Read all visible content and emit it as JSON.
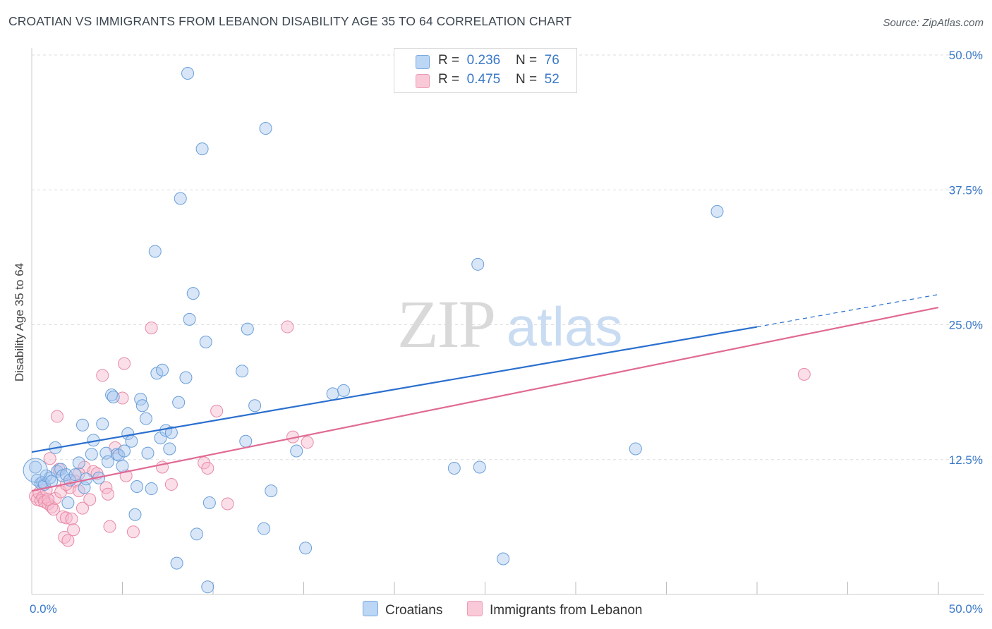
{
  "title": "CROATIAN VS IMMIGRANTS FROM LEBANON DISABILITY AGE 35 TO 64 CORRELATION CHART",
  "source": "Source: ZipAtlas.com",
  "watermark": {
    "zip": "ZIP",
    "atlas": "atlas"
  },
  "legend_top": {
    "rows": [
      {
        "r_label": "R =",
        "r_value": "0.236",
        "n_label": "N =",
        "n_value": "76"
      },
      {
        "r_label": "R =",
        "r_value": "0.475",
        "n_label": "N =",
        "n_value": "52"
      }
    ]
  },
  "colors": {
    "croatians_fill": "#a8c8f0",
    "croatians_stroke": "#6a9fd8",
    "croatians_line": "#2a6fcf",
    "lebanon_fill": "#f7b8cb",
    "lebanon_stroke": "#e88aa6",
    "lebanon_line": "#e06a94",
    "axis_label": "#3a78c8",
    "grid": "#dddddd"
  },
  "chart_data": {
    "type": "scatter",
    "title": "CROATIAN VS IMMIGRANTS FROM LEBANON DISABILITY AGE 35 TO 64 CORRELATION CHART",
    "xlabel": "",
    "ylabel": "Disability Age 35 to 64",
    "xlim": [
      0,
      50
    ],
    "ylim": [
      0,
      50
    ],
    "x_tick_labels": [
      "0.0%",
      "50.0%"
    ],
    "y_ticks": [
      12.5,
      25.0,
      37.5,
      50.0
    ],
    "y_tick_labels": [
      "12.5%",
      "25.0%",
      "37.5%",
      "50.0%"
    ],
    "legend": {
      "placement": "bottom-center",
      "entries": [
        "Croatians",
        "Immigrants from Lebanon"
      ]
    },
    "series": [
      {
        "name": "Croatians",
        "r": 0.236,
        "n": 76,
        "trend": {
          "x0": 0,
          "y0": 13.2,
          "x1": 40,
          "y1": 24.8,
          "dash_x1": 50,
          "dash_y1": 27.8
        },
        "points": [
          [
            0.2,
            11.8
          ],
          [
            0.3,
            10.6
          ],
          [
            0.5,
            10.3
          ],
          [
            0.6,
            10.4
          ],
          [
            0.7,
            10.2
          ],
          [
            0.8,
            11.0
          ],
          [
            1.0,
            10.8
          ],
          [
            1.1,
            10.5
          ],
          [
            1.3,
            13.6
          ],
          [
            1.4,
            11.4
          ],
          [
            1.6,
            11.6
          ],
          [
            1.7,
            11.0
          ],
          [
            1.9,
            11.1
          ],
          [
            2.0,
            8.5
          ],
          [
            2.1,
            10.6
          ],
          [
            2.4,
            11.1
          ],
          [
            2.6,
            12.2
          ],
          [
            2.8,
            15.7
          ],
          [
            2.9,
            9.9
          ],
          [
            3.0,
            10.7
          ],
          [
            3.3,
            13.0
          ],
          [
            3.4,
            14.3
          ],
          [
            3.7,
            10.8
          ],
          [
            3.9,
            15.8
          ],
          [
            4.1,
            13.1
          ],
          [
            4.2,
            12.3
          ],
          [
            4.4,
            18.5
          ],
          [
            4.5,
            18.3
          ],
          [
            4.7,
            13.0
          ],
          [
            4.8,
            12.9
          ],
          [
            5.0,
            11.9
          ],
          [
            5.1,
            13.3
          ],
          [
            5.3,
            14.9
          ],
          [
            5.5,
            14.2
          ],
          [
            5.7,
            7.4
          ],
          [
            5.8,
            10.0
          ],
          [
            6.0,
            18.1
          ],
          [
            6.1,
            17.5
          ],
          [
            6.3,
            16.3
          ],
          [
            6.4,
            13.1
          ],
          [
            6.6,
            9.8
          ],
          [
            6.8,
            31.8
          ],
          [
            6.9,
            20.5
          ],
          [
            7.1,
            14.5
          ],
          [
            7.2,
            20.8
          ],
          [
            7.4,
            15.2
          ],
          [
            7.6,
            13.5
          ],
          [
            7.7,
            15.0
          ],
          [
            8.1,
            17.8
          ],
          [
            8.2,
            36.7
          ],
          [
            8.5,
            20.1
          ],
          [
            8.7,
            25.5
          ],
          [
            8.9,
            27.9
          ],
          [
            9.1,
            5.6
          ],
          [
            9.4,
            41.3
          ],
          [
            9.6,
            23.4
          ],
          [
            9.7,
            0.7
          ],
          [
            9.8,
            8.5
          ],
          [
            8.6,
            48.3
          ],
          [
            8.0,
            2.9
          ],
          [
            11.6,
            20.7
          ],
          [
            11.8,
            14.2
          ],
          [
            11.9,
            24.6
          ],
          [
            12.3,
            17.5
          ],
          [
            12.8,
            6.1
          ],
          [
            12.9,
            43.2
          ],
          [
            13.2,
            9.6
          ],
          [
            14.6,
            13.3
          ],
          [
            15.1,
            4.3
          ],
          [
            16.6,
            18.6
          ],
          [
            17.2,
            18.9
          ],
          [
            23.3,
            11.7
          ],
          [
            24.6,
            30.6
          ],
          [
            24.7,
            11.8
          ],
          [
            26.0,
            3.3
          ],
          [
            33.3,
            13.5
          ],
          [
            37.8,
            35.5
          ]
        ]
      },
      {
        "name": "Immigrants from Lebanon",
        "r": 0.475,
        "n": 52,
        "trend": {
          "x0": 0,
          "y0": 9.6,
          "x1": 50,
          "y1": 26.6
        },
        "points": [
          [
            0.2,
            9.1
          ],
          [
            0.3,
            8.8
          ],
          [
            0.4,
            9.4
          ],
          [
            0.5,
            8.7
          ],
          [
            0.6,
            9.0
          ],
          [
            0.7,
            8.6
          ],
          [
            0.8,
            9.7
          ],
          [
            0.9,
            8.4
          ],
          [
            1.0,
            12.6
          ],
          [
            1.1,
            8.1
          ],
          [
            1.2,
            7.9
          ],
          [
            1.3,
            8.9
          ],
          [
            1.4,
            16.5
          ],
          [
            1.5,
            11.6
          ],
          [
            1.6,
            9.5
          ],
          [
            1.7,
            7.2
          ],
          [
            1.8,
            5.3
          ],
          [
            1.9,
            7.1
          ],
          [
            2.0,
            5.0
          ],
          [
            2.1,
            9.9
          ],
          [
            2.2,
            7.0
          ],
          [
            2.3,
            6.0
          ],
          [
            2.4,
            10.5
          ],
          [
            2.6,
            9.6
          ],
          [
            2.8,
            8.0
          ],
          [
            2.9,
            11.8
          ],
          [
            3.2,
            8.8
          ],
          [
            3.4,
            11.4
          ],
          [
            3.6,
            11.2
          ],
          [
            3.9,
            20.3
          ],
          [
            4.1,
            9.9
          ],
          [
            4.2,
            9.3
          ],
          [
            4.3,
            6.3
          ],
          [
            4.6,
            13.6
          ],
          [
            5.0,
            18.2
          ],
          [
            5.1,
            21.4
          ],
          [
            5.2,
            11.0
          ],
          [
            5.6,
            5.8
          ],
          [
            6.6,
            24.7
          ],
          [
            7.2,
            11.8
          ],
          [
            7.7,
            10.2
          ],
          [
            9.5,
            12.2
          ],
          [
            9.7,
            11.7
          ],
          [
            10.2,
            17.0
          ],
          [
            10.8,
            8.4
          ],
          [
            14.1,
            24.8
          ],
          [
            14.4,
            14.6
          ],
          [
            15.2,
            14.1
          ],
          [
            0.9,
            8.8
          ],
          [
            1.9,
            10.2
          ],
          [
            2.6,
            11.2
          ],
          [
            42.6,
            20.4
          ]
        ]
      }
    ]
  }
}
